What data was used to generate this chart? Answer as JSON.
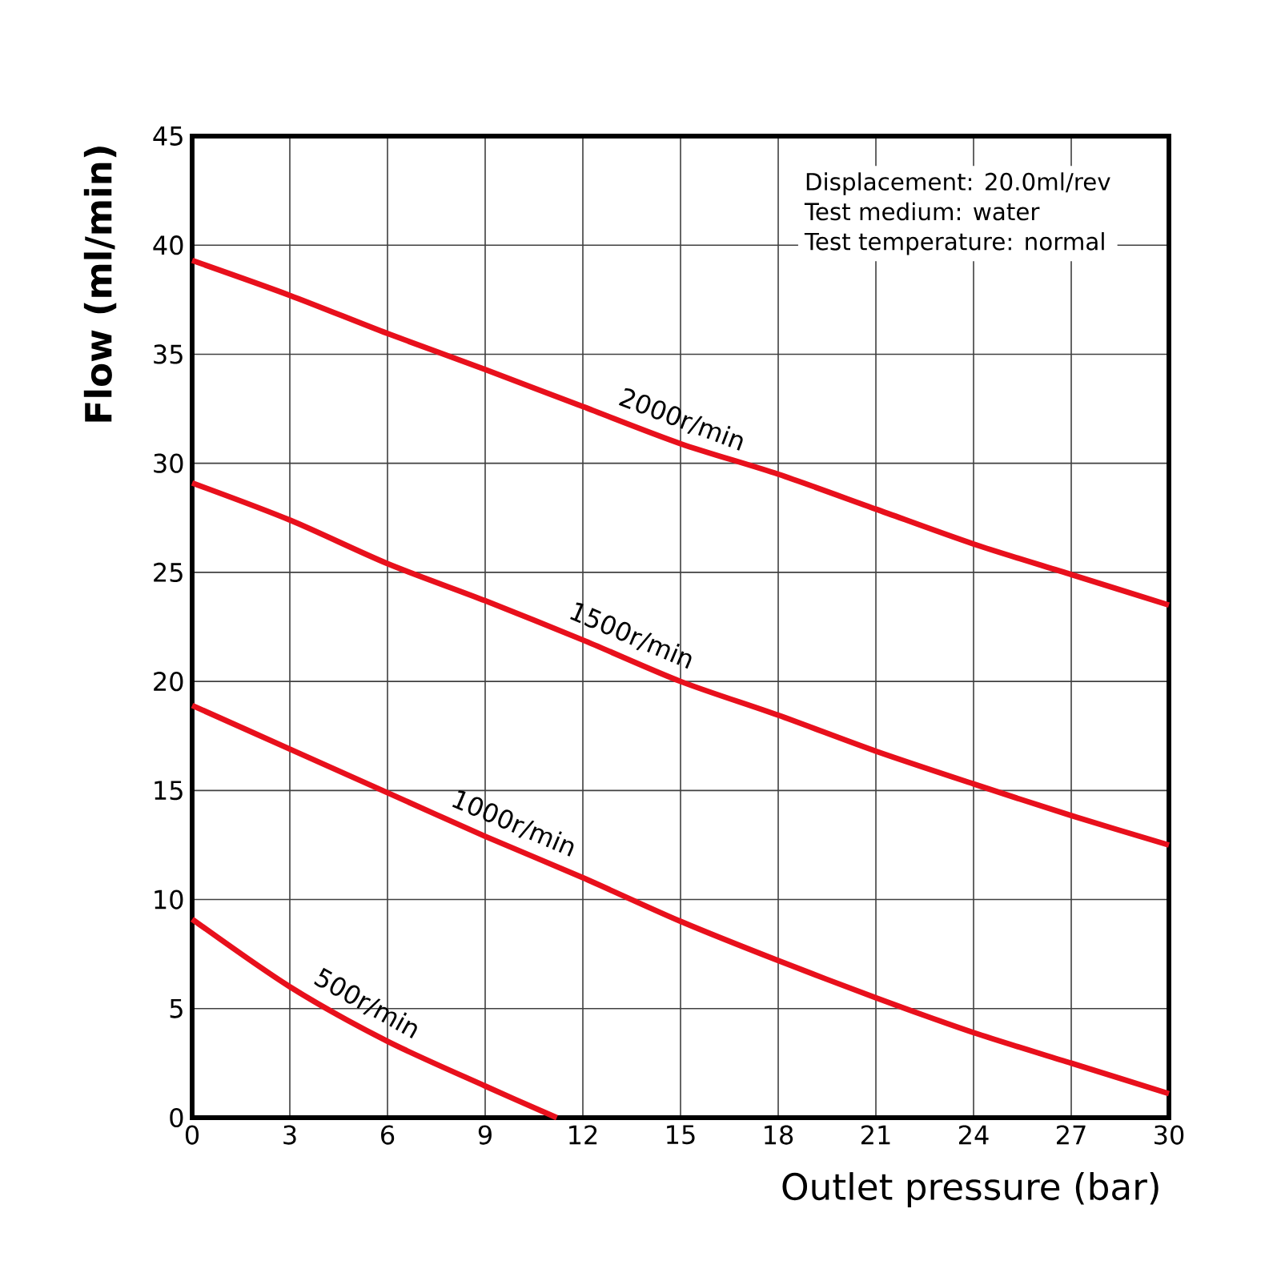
{
  "chart_data": {
    "type": "line",
    "xlabel": "Outlet pressure (bar)",
    "ylabel": "Flow (ml/min)",
    "annotations": [
      "Displacement: 20.0ml/rev",
      "Test medium: water",
      "Test temperature: normal"
    ],
    "xlim": [
      0,
      30
    ],
    "ylim": [
      0,
      45
    ],
    "xticks": [
      0,
      3,
      6,
      9,
      12,
      15,
      18,
      21,
      24,
      27,
      30
    ],
    "yticks": [
      0,
      5,
      10,
      15,
      20,
      25,
      30,
      35,
      40,
      45
    ],
    "grid": true,
    "legend": false,
    "marker": "none",
    "line_style": "solid",
    "series": [
      {
        "name": "2000r/min",
        "color": "#e8101c",
        "x": [
          0,
          3,
          6,
          9,
          12,
          15,
          18,
          21,
          24,
          27,
          30
        ],
        "values": [
          39.3,
          37.7,
          35.95,
          34.3,
          32.6,
          30.9,
          29.5,
          27.9,
          26.3,
          24.9,
          23.5
        ]
      },
      {
        "name": "1500r/min",
        "color": "#e8101c",
        "x": [
          0,
          3,
          6,
          9,
          12,
          15,
          18,
          21,
          24,
          27,
          30
        ],
        "values": [
          29.1,
          27.4,
          25.4,
          23.7,
          21.9,
          20.0,
          18.45,
          16.8,
          15.3,
          13.85,
          12.5
        ]
      },
      {
        "name": "1000r/min",
        "color": "#e8101c",
        "x": [
          0,
          3,
          6,
          9,
          12,
          15,
          18,
          21,
          24,
          27,
          30
        ],
        "values": [
          18.9,
          16.9,
          14.9,
          12.9,
          11.0,
          9.0,
          7.2,
          5.5,
          3.9,
          2.5,
          1.1
        ]
      },
      {
        "name": "500r/min",
        "color": "#e8101c",
        "x": [
          0,
          3,
          6,
          9,
          11.2
        ],
        "values": [
          9.1,
          6.0,
          3.5,
          1.45,
          0
        ]
      }
    ]
  }
}
